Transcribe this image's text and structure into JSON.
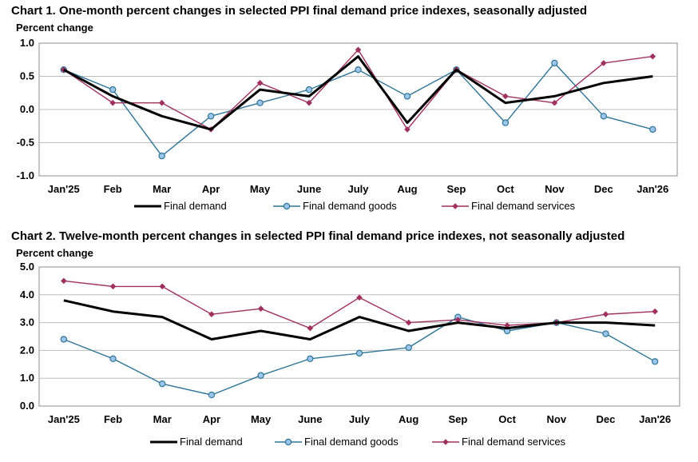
{
  "chart_data": [
    {
      "type": "line",
      "title": "Chart 1. One-month percent changes in selected PPI final demand price indexes, seasonally adjusted",
      "ylabel": "Percent change",
      "xlabel": "",
      "categories": [
        "Jan'25",
        "Feb",
        "Mar",
        "Apr",
        "May",
        "June",
        "July",
        "Aug",
        "Sep",
        "Oct",
        "Nov",
        "Dec",
        "Jan'26"
      ],
      "ylim": [
        -1.0,
        1.0
      ],
      "yticks": [
        "1.0",
        "0.5",
        "0.0",
        "-0.5",
        "-1.0"
      ],
      "ytick_values": [
        1.0,
        0.5,
        0.0,
        -0.5,
        -1.0
      ],
      "grid": true,
      "legend_position": "bottom",
      "series": [
        {
          "name": "Final demand",
          "color": "#000000",
          "marker": "none",
          "values": [
            0.6,
            0.2,
            -0.1,
            -0.3,
            0.3,
            0.2,
            0.8,
            -0.2,
            0.6,
            0.1,
            0.2,
            0.4,
            0.5
          ]
        },
        {
          "name": "Final demand goods",
          "color": "#2e7497",
          "marker": "circle",
          "values": [
            0.6,
            0.3,
            -0.7,
            -0.1,
            0.1,
            0.3,
            0.6,
            0.2,
            0.6,
            -0.2,
            0.7,
            -0.1,
            -0.3
          ]
        },
        {
          "name": "Final demand services",
          "color": "#a0305f",
          "marker": "diamond",
          "values": [
            0.6,
            0.1,
            0.1,
            -0.3,
            0.4,
            0.1,
            0.9,
            -0.3,
            0.6,
            0.2,
            0.1,
            0.7,
            0.8
          ]
        }
      ]
    },
    {
      "type": "line",
      "title": "Chart 2. Twelve-month percent changes in selected PPI final demand price indexes, not seasonally adjusted",
      "ylabel": "Percent change",
      "xlabel": "",
      "categories": [
        "Jan'25",
        "Feb",
        "Mar",
        "Apr",
        "May",
        "June",
        "July",
        "Aug",
        "Sep",
        "Oct",
        "Nov",
        "Dec",
        "Jan'26"
      ],
      "ylim": [
        0.0,
        5.0
      ],
      "yticks": [
        "5.0",
        "4.0",
        "3.0",
        "2.0",
        "1.0",
        "0.0"
      ],
      "ytick_values": [
        5.0,
        4.0,
        3.0,
        2.0,
        1.0,
        0.0
      ],
      "grid": true,
      "legend_position": "bottom",
      "series": [
        {
          "name": "Final demand",
          "color": "#000000",
          "marker": "none",
          "values": [
            3.8,
            3.4,
            3.2,
            2.4,
            2.7,
            2.4,
            3.2,
            2.7,
            3.0,
            2.8,
            3.0,
            3.0,
            2.9
          ]
        },
        {
          "name": "Final demand goods",
          "color": "#2e7497",
          "marker": "circle",
          "values": [
            2.4,
            1.7,
            0.8,
            0.4,
            1.1,
            1.7,
            1.9,
            2.1,
            3.2,
            2.7,
            3.0,
            2.6,
            1.6
          ]
        },
        {
          "name": "Final demand services",
          "color": "#a0305f",
          "marker": "diamond",
          "values": [
            4.5,
            4.3,
            4.3,
            3.3,
            3.5,
            2.8,
            3.9,
            3.0,
            3.1,
            2.9,
            3.0,
            3.3,
            3.4
          ]
        }
      ]
    }
  ]
}
